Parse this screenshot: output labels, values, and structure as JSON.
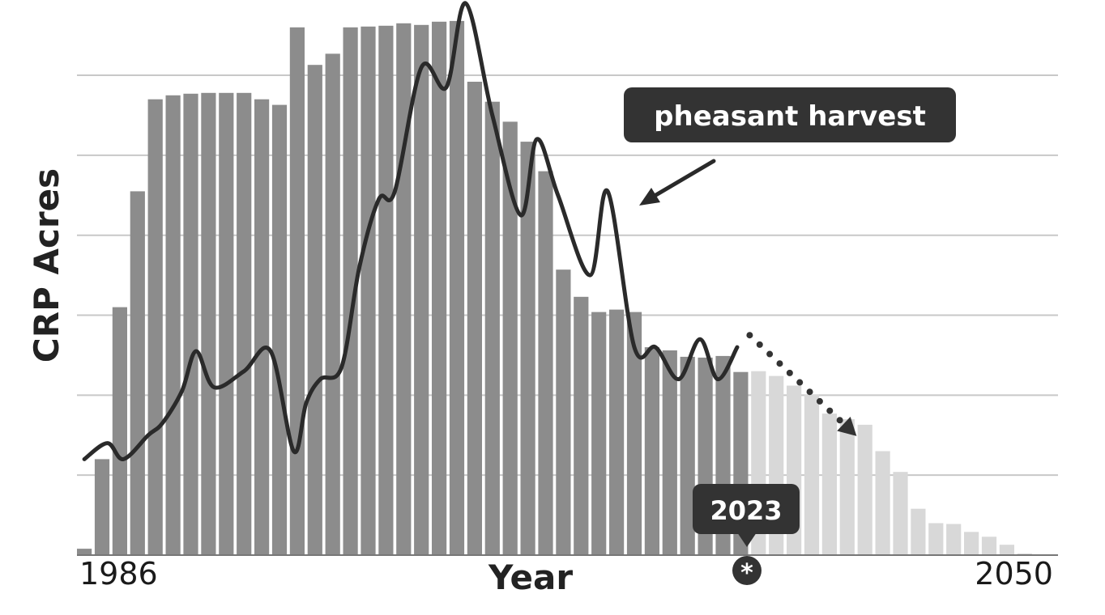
{
  "chart_data": {
    "type": "bar",
    "ylabel": "CRP Acres",
    "xlabel": "Year",
    "x_tick_labels": [
      "1986",
      "2050"
    ],
    "xlim": [
      1986,
      2050
    ],
    "ylim": [
      0,
      6.8
    ],
    "grid": true,
    "series": [
      {
        "values": [
          0.08,
          1.2,
          3.1,
          4.55,
          5.7,
          5.75,
          5.77,
          5.78,
          5.78,
          5.78,
          5.7,
          5.63,
          6.6,
          6.13,
          6.27,
          6.6,
          6.61,
          6.62,
          6.65,
          6.63,
          6.67,
          6.68,
          5.92,
          5.67,
          5.42,
          5.17,
          4.8,
          3.57,
          3.23,
          3.04,
          3.07,
          3.04,
          2.6,
          2.56,
          2.48,
          2.47,
          2.49,
          2.29
        ],
        "color": "#8c8c8c"
      },
      {
        "values": [
          2.3,
          2.24,
          2.12,
          2.01,
          1.77,
          1.7,
          1.63,
          1.3,
          1.04,
          0.58,
          0.4,
          0.39,
          0.29,
          0.23,
          0.13,
          0.02,
          0.01
        ],
        "color": "#d8d8d8"
      },
      {
        "name": "pheasant harvest",
        "x": [
          1986,
          1987.3,
          1988.2,
          1989.6,
          1990.4,
          1991.5,
          1992.3,
          1993.3,
          1995,
          1996.5,
          1997.8,
          1998.5,
          1999.3,
          2000.5,
          2001.5,
          2002.6,
          2003.5,
          2005,
          2006.4,
          2007.5,
          2009,
          2010.6,
          2011.5,
          2012.7,
          2014.5,
          2015.5,
          2017,
          2018.2,
          2019.5,
          2020.7,
          2021.7,
          2022.8
        ],
        "values": [
          1.2,
          1.4,
          1.2,
          1.5,
          1.65,
          2.05,
          2.55,
          2.1,
          2.3,
          2.55,
          1.3,
          1.9,
          2.2,
          2.35,
          3.6,
          4.45,
          4.55,
          6.1,
          5.85,
          6.9,
          5.5,
          4.25,
          5.2,
          4.5,
          3.5,
          4.55,
          2.6,
          2.6,
          2.2,
          2.7,
          2.2,
          2.6
        ],
        "color": "#2a2a2a"
      },
      {
        "x": [
          2023.5,
          2029
        ],
        "values": [
          2.75,
          1.6
        ],
        "color": "#333333"
      }
    ],
    "annotations": [
      {
        "text": "pheasant harvest",
        "color": "#333333"
      },
      {
        "text": "2023",
        "color": "#333333"
      },
      {
        "text": "*",
        "color": "#333333"
      }
    ]
  }
}
